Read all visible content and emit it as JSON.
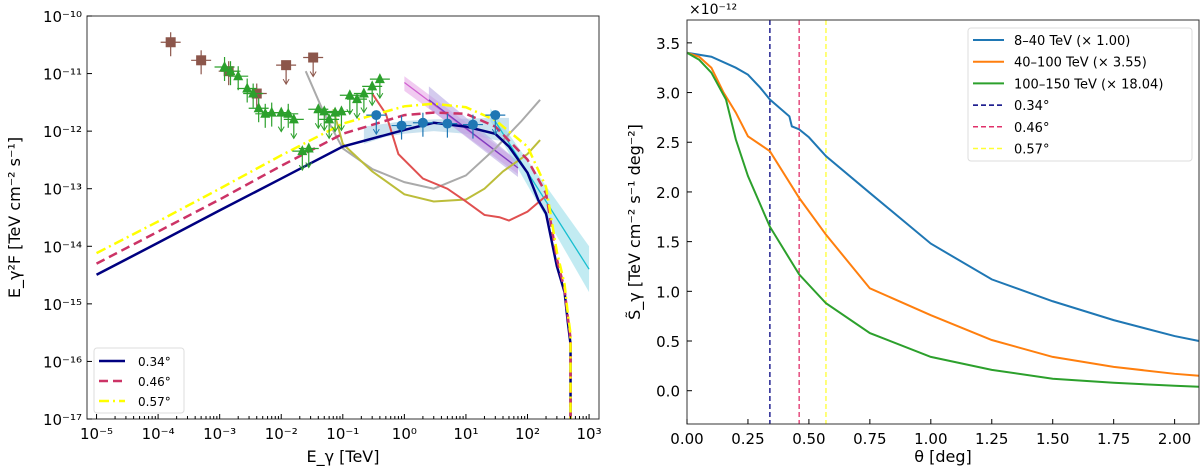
{
  "chart_data": [
    {
      "type": "line",
      "xlabel": "E_γ [TeV]",
      "ylabel": "E_γ²F [TeV cm⁻² s⁻¹]",
      "xscale": "log",
      "yscale": "log",
      "xlim": [
        7e-06,
        1450
      ],
      "ylim": [
        1e-17,
        1e-10
      ],
      "xticks": [
        {
          "v": -5,
          "l": "10⁻⁵"
        },
        {
          "v": -4,
          "l": "10⁻⁴"
        },
        {
          "v": -3,
          "l": "10⁻³"
        },
        {
          "v": -2,
          "l": "10⁻²"
        },
        {
          "v": -1,
          "l": "10⁻¹"
        },
        {
          "v": 0,
          "l": "10⁰"
        },
        {
          "v": 1,
          "l": "10¹"
        },
        {
          "v": 2,
          "l": "10²"
        },
        {
          "v": 3,
          "l": "10³"
        }
      ],
      "yticks": [
        {
          "v": -10,
          "l": "10⁻¹⁰"
        },
        {
          "v": -11,
          "l": "10⁻¹¹"
        },
        {
          "v": -12,
          "l": "10⁻¹²"
        },
        {
          "v": -13,
          "l": "10⁻¹³"
        },
        {
          "v": -14,
          "l": "10⁻¹⁴"
        },
        {
          "v": -15,
          "l": "10⁻¹⁵"
        },
        {
          "v": -16,
          "l": "10⁻¹⁶"
        },
        {
          "v": -17,
          "l": "10⁻¹⁷"
        }
      ],
      "legend_position": "lower-left",
      "series": [
        {
          "name": "0.34°",
          "color": "#000080",
          "style": "solid",
          "x": [
            1e-05,
            0.0001,
            0.001,
            0.01,
            0.1,
            1,
            3,
            10,
            30,
            50,
            100,
            150,
            200,
            300,
            400,
            450,
            500,
            500
          ],
          "y": [
            3.2e-15,
            1.15e-14,
            4.2e-14,
            1.5e-13,
            5.4e-13,
            1.05e-12,
            1.4e-12,
            1.2e-12,
            9e-13,
            5.4e-13,
            1.9e-13,
            6.3e-14,
            3.7e-14,
            4.5e-15,
            1.6e-15,
            5e-16,
            2e-16,
            1e-17
          ]
        },
        {
          "name": "0.46°",
          "color": "#cc3366",
          "style": "dashed",
          "x": [
            1e-05,
            0.0001,
            0.001,
            0.01,
            0.1,
            1,
            3,
            10,
            30,
            100,
            200,
            300,
            400,
            450,
            500,
            500
          ],
          "y": [
            5e-15,
            1.8e-14,
            6.5e-14,
            2.5e-13,
            9e-13,
            1.9e-12,
            2.1e-12,
            2e-12,
            1.2e-12,
            3.2e-13,
            8.3e-14,
            6e-15,
            1.8e-15,
            6e-16,
            2.5e-16,
            1e-17
          ]
        },
        {
          "name": "0.57°",
          "color": "#ffff00",
          "style": "dashdot",
          "x": [
            1e-05,
            0.0001,
            0.001,
            0.01,
            0.1,
            1,
            3,
            10,
            30,
            100,
            200,
            300,
            400,
            450,
            500,
            500
          ],
          "y": [
            7.6e-15,
            2.7e-14,
            1e-13,
            3.8e-13,
            1.35e-12,
            2.7e-12,
            3e-12,
            2.6e-12,
            1.55e-12,
            5.4e-13,
            1.07e-13,
            8e-15,
            2.2e-15,
            7e-16,
            3e-16,
            1e-17
          ]
        },
        {
          "color": "#aaaaaa",
          "style": "solid",
          "x": [
            0.025,
            0.05,
            0.1,
            0.3,
            1,
            3,
            10,
            30,
            80,
            160
          ],
          "y": [
            1.1e-11,
            2e-12,
            5e-13,
            2.2e-13,
            1.3e-13,
            1e-13,
            1.7e-13,
            5e-13,
            1.5e-12,
            3.5e-12
          ]
        },
        {
          "color": "#bcbd3a",
          "style": "solid",
          "x": [
            0.07,
            0.1,
            0.3,
            1,
            3,
            10,
            20,
            40,
            100,
            160
          ],
          "y": [
            2.4e-12,
            6e-13,
            2e-13,
            8e-14,
            6e-14,
            6.5e-14,
            1e-13,
            2e-13,
            4e-13,
            7e-13
          ]
        },
        {
          "color": "#e05050",
          "style": "solid",
          "x": [
            0.3,
            0.5,
            0.8,
            2,
            5,
            10,
            20,
            35,
            50,
            100,
            200
          ],
          "y": [
            4.5e-12,
            2e-12,
            4e-13,
            1.5e-13,
            1e-13,
            6e-14,
            3.5e-14,
            3.2e-14,
            2.8e-14,
            4e-14,
            7.5e-14
          ]
        }
      ],
      "bands": [
        {
          "color": "#9ecae1",
          "x": [
            0.22,
            0.5,
            1,
            3,
            10,
            30,
            50
          ],
          "lo": [
            6e-13,
            8e-13,
            9e-13,
            1e-12,
            9e-13,
            7e-13,
            6.5e-13
          ],
          "hi": [
            1.2e-12,
            1.35e-12,
            1.5e-12,
            1.6e-12,
            1.65e-12,
            1.7e-12,
            1.7e-12
          ]
        },
        {
          "color": "#e6a0e6",
          "x": [
            1,
            70
          ],
          "lo": [
            5e-12,
            1.8e-13
          ],
          "hi": [
            9e-12,
            3e-13
          ]
        },
        {
          "color": "#b0a0e0",
          "x": [
            2.5,
            70
          ],
          "lo": [
            2.5e-12,
            1.6e-13
          ],
          "hi": [
            6e-12,
            3e-13
          ]
        },
        {
          "color": "#8fdbe8",
          "x": [
            25,
            1000
          ],
          "lo": [
            1.5e-12,
            1.6e-15
          ],
          "hi": [
            2.5e-12,
            1e-14
          ]
        }
      ],
      "powerlaws": [
        {
          "color": "#d060d0",
          "x": [
            1,
            70
          ],
          "y": [
            7e-12,
            2.3e-13
          ]
        },
        {
          "color": "#7b40c0",
          "x": [
            2.5,
            70
          ],
          "y": [
            3.5e-12,
            2.3e-13
          ]
        },
        {
          "color": "#17becf",
          "x": [
            25,
            1000
          ],
          "y": [
            2e-12,
            4e-15
          ]
        }
      ],
      "points": [
        {
          "marker": "square",
          "color": "#8c564b",
          "data": [
            {
              "x": 0.00016,
              "y": 3.5e-11,
              "ul": false
            },
            {
              "x": 0.0005,
              "y": 1.7e-11,
              "ul": false
            },
            {
              "x": 0.0014,
              "y": 1.1e-11,
              "ul": false
            },
            {
              "x": 0.004,
              "y": 4.5e-12,
              "ul": false
            },
            {
              "x": 0.012,
              "y": 1.4e-11,
              "ul": true
            },
            {
              "x": 0.033,
              "y": 1.9e-11,
              "ul": true
            }
          ]
        },
        {
          "marker": "triangle",
          "color": "#2ca02c",
          "data": [
            {
              "x": 0.0012,
              "y": 1.3e-11,
              "ul": false
            },
            {
              "x": 0.0015,
              "y": 1.1e-11,
              "ul": false
            },
            {
              "x": 0.002,
              "y": 9e-12,
              "ul": false
            },
            {
              "x": 0.0028,
              "y": 5.5e-12,
              "ul": false
            },
            {
              "x": 0.0035,
              "y": 4.5e-12,
              "ul": false
            },
            {
              "x": 0.0043,
              "y": 2.5e-12,
              "ul": false
            },
            {
              "x": 0.0055,
              "y": 2e-12,
              "ul": false
            },
            {
              "x": 0.007,
              "y": 2.1e-12,
              "ul": false
            },
            {
              "x": 0.01,
              "y": 2.1e-12,
              "ul": true
            },
            {
              "x": 0.013,
              "y": 2e-12,
              "ul": false
            },
            {
              "x": 0.016,
              "y": 1.6e-12,
              "ul": true
            },
            {
              "x": 0.022,
              "y": 4.5e-13,
              "ul": true
            },
            {
              "x": 0.028,
              "y": 5e-13,
              "ul": true
            },
            {
              "x": 0.04,
              "y": 2.4e-12,
              "ul": true
            },
            {
              "x": 0.05,
              "y": 2.2e-12,
              "ul": true
            },
            {
              "x": 0.06,
              "y": 1.6e-12,
              "ul": true
            },
            {
              "x": 0.075,
              "y": 2.1e-12,
              "ul": true
            },
            {
              "x": 0.095,
              "y": 2.2e-12,
              "ul": true
            },
            {
              "x": 0.13,
              "y": 4.2e-12,
              "ul": true
            },
            {
              "x": 0.17,
              "y": 3.6e-12,
              "ul": true
            },
            {
              "x": 0.22,
              "y": 4.5e-12,
              "ul": true
            },
            {
              "x": 0.3,
              "y": 6e-12,
              "ul": true
            },
            {
              "x": 0.4,
              "y": 8e-12,
              "ul": true
            }
          ]
        },
        {
          "marker": "circle",
          "color": "#1f77b4",
          "data": [
            {
              "x": 0.35,
              "y": 1.9e-12,
              "ul": true
            },
            {
              "x": 0.9,
              "y": 1.25e-12,
              "ul": false
            },
            {
              "x": 2,
              "y": 1.4e-12,
              "ul": false
            },
            {
              "x": 5,
              "y": 1.35e-12,
              "ul": false
            },
            {
              "x": 13,
              "y": 1.3e-12,
              "ul": false
            },
            {
              "x": 30,
              "y": 1.9e-12,
              "ul": true
            }
          ]
        }
      ]
    },
    {
      "type": "line",
      "xlabel": "θ [deg]",
      "ylabel": "S̃_γ [TeV cm⁻² s⁻¹ deg⁻²]",
      "offset_label": "×10⁻¹²",
      "xlim": [
        0,
        2.1
      ],
      "ylim": [
        -0.335,
        3.73
      ],
      "xticks": [
        "0.00",
        "0.25",
        "0.50",
        "0.75",
        "1.00",
        "1.25",
        "1.50",
        "1.75",
        "2.00"
      ],
      "yticks": [
        "0.0",
        "0.5",
        "1.0",
        "1.5",
        "2.0",
        "2.5",
        "3.0",
        "3.5"
      ],
      "legend_position": "upper-right",
      "series": [
        {
          "name": "8–40 TeV (× 1.00)",
          "color": "#1f77b4",
          "x": [
            0,
            0.1,
            0.2,
            0.25,
            0.3,
            0.34,
            0.42,
            0.43,
            0.46,
            0.5,
            0.57,
            0.75,
            1.0,
            1.25,
            1.5,
            1.75,
            2.0,
            2.1
          ],
          "y": [
            3.4,
            3.36,
            3.25,
            3.18,
            3.05,
            2.93,
            2.76,
            2.66,
            2.63,
            2.55,
            2.36,
            1.99,
            1.48,
            1.12,
            0.9,
            0.71,
            0.55,
            0.5
          ]
        },
        {
          "name": "40–100 TeV (× 3.55)",
          "color": "#ff7f0e",
          "x": [
            0,
            0.05,
            0.1,
            0.15,
            0.2,
            0.25,
            0.34,
            0.46,
            0.57,
            0.75,
            1.0,
            1.25,
            1.5,
            1.75,
            2.0,
            2.1
          ],
          "y": [
            3.4,
            3.36,
            3.25,
            3.0,
            2.8,
            2.56,
            2.41,
            1.94,
            1.57,
            1.03,
            0.76,
            0.51,
            0.34,
            0.24,
            0.17,
            0.15
          ]
        },
        {
          "name": "100–150 TeV (× 18.04)",
          "color": "#2ca02c",
          "x": [
            0,
            0.05,
            0.1,
            0.16,
            0.2,
            0.25,
            0.34,
            0.46,
            0.57,
            0.75,
            1.0,
            1.25,
            1.5,
            1.75,
            2.0,
            2.1
          ],
          "y": [
            3.4,
            3.33,
            3.2,
            2.93,
            2.53,
            2.16,
            1.65,
            1.17,
            0.88,
            0.58,
            0.34,
            0.21,
            0.12,
            0.08,
            0.05,
            0.04
          ]
        }
      ],
      "vlines": [
        {
          "name": "0.34°",
          "x": 0.34,
          "color": "#000080"
        },
        {
          "name": "0.46°",
          "x": 0.46,
          "color": "#e0306a"
        },
        {
          "name": "0.57°",
          "x": 0.57,
          "color": "#ffff33"
        }
      ]
    }
  ]
}
